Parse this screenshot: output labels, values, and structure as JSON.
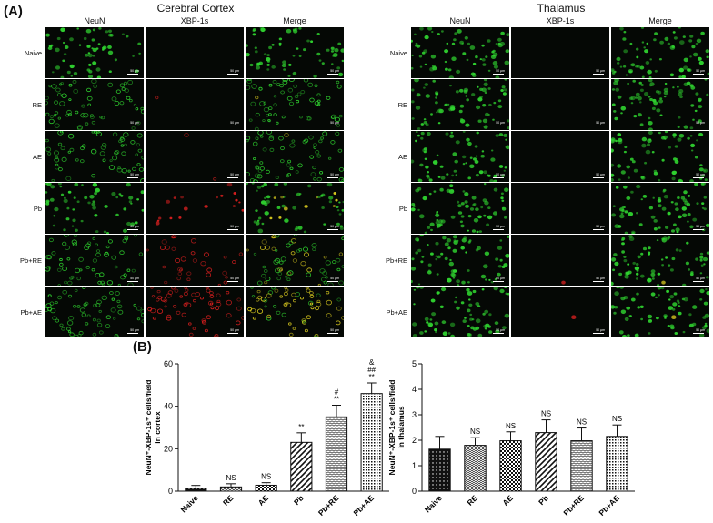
{
  "figure": {
    "panel_a_label": "(A)",
    "panel_b_label": "(B)",
    "regions": [
      {
        "title": "Cerebral Cortex"
      },
      {
        "title": "Thalamus"
      }
    ],
    "columns": [
      "NeuN",
      "XBP-1s",
      "Merge"
    ],
    "rows": [
      "Naive",
      "RE",
      "AE",
      "Pb",
      "Pb+RE",
      "Pb+AE"
    ],
    "scale_text": "50 μm",
    "colors": {
      "neun": "#2fd12f",
      "xbp": "#e02020",
      "merge": "#e0d020"
    }
  },
  "chart_data": [
    {
      "type": "bar",
      "categories": [
        "Naive",
        "RE",
        "AE",
        "Pb",
        "Pb+RE",
        "Pb+AE"
      ],
      "values": [
        1.5,
        2.0,
        2.8,
        23,
        35,
        46
      ],
      "errors": [
        1.2,
        1.5,
        1.2,
        4.5,
        5.5,
        5.0
      ],
      "annotations": [
        "",
        "NS",
        "NS",
        "**",
        "#\n**",
        "&\n##\n**"
      ],
      "ylabel_lines": [
        "NeuN⁺-XBP-1s⁺ cells/field",
        "in cortex"
      ],
      "ylim": [
        0,
        60
      ],
      "yticks": [
        0,
        20,
        40,
        60
      ],
      "patterns": [
        "dots",
        "wave",
        "check",
        "diag",
        "brick",
        "grid"
      ]
    },
    {
      "type": "bar",
      "categories": [
        "Naive",
        "RE",
        "AE",
        "Pb",
        "Pb+RE",
        "Pb+AE"
      ],
      "values": [
        1.65,
        1.8,
        1.98,
        2.3,
        1.98,
        2.15
      ],
      "errors": [
        0.5,
        0.3,
        0.35,
        0.5,
        0.5,
        0.45
      ],
      "annotations": [
        "",
        "NS",
        "NS",
        "NS",
        "NS",
        "NS"
      ],
      "ylabel_lines": [
        "NeuN⁺-XBP-1s⁺ cells/field",
        "in thalamus"
      ],
      "ylim": [
        0,
        5
      ],
      "yticks": [
        0,
        1,
        2,
        3,
        4,
        5
      ],
      "patterns": [
        "dots",
        "wave",
        "check",
        "diag",
        "brick",
        "grid"
      ]
    }
  ]
}
